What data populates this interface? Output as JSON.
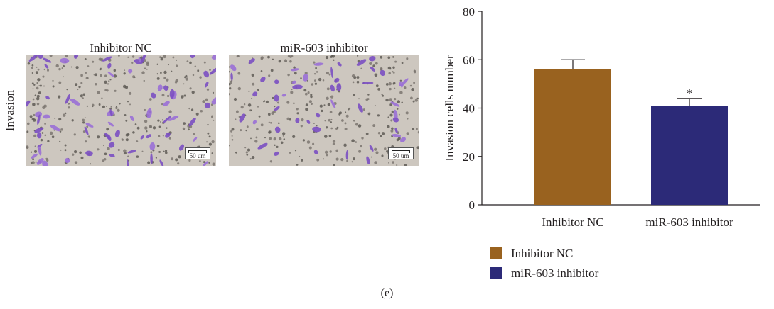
{
  "micrographs": {
    "row_label": "Invasion",
    "panels": [
      {
        "title": "Inhibitor NC",
        "scale_label": "50 um"
      },
      {
        "title": "miR-603 inhibitor",
        "scale_label": "50 um"
      }
    ]
  },
  "chart_data": {
    "type": "bar",
    "categories": [
      "Inhibitor NC",
      "miR-603 inhibitor"
    ],
    "values": [
      56,
      41
    ],
    "error": [
      4,
      3
    ],
    "colors": [
      "#99621f",
      "#2c2a78"
    ],
    "title": "",
    "xlabel": "",
    "ylabel": "Invasion cells number",
    "ylim": [
      0,
      80
    ],
    "yticks": [
      0,
      20,
      40,
      60,
      80
    ],
    "annotations": [
      {
        "category": "miR-603 inhibitor",
        "text": "*"
      }
    ],
    "legend": {
      "placement": "bottom-left",
      "entries": [
        {
          "label": "Inhibitor NC",
          "color": "#99621f"
        },
        {
          "label": "miR-603 inhibitor",
          "color": "#2c2a78"
        }
      ]
    },
    "grid": false
  },
  "panel_label": "(e)"
}
